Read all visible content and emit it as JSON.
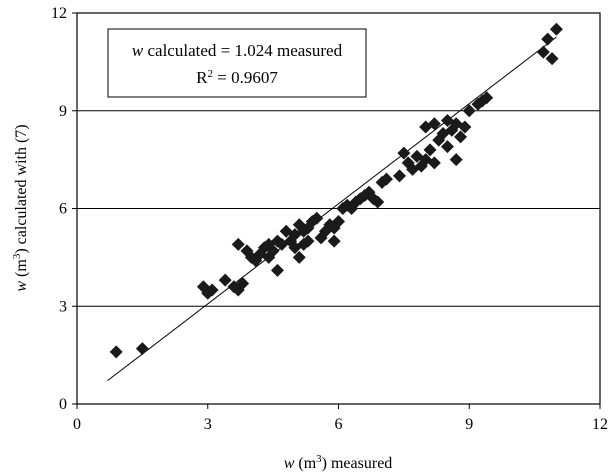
{
  "chart_data": {
    "type": "scatter",
    "xlabel": {
      "var": "w",
      "open": " (m",
      "sup": "3",
      "close": ") measured"
    },
    "ylabel": {
      "var": "w",
      "open": " (m",
      "sup": "3",
      "close": ") calculated with (7)"
    },
    "xlim": [
      0,
      12
    ],
    "ylim": [
      0,
      12
    ],
    "xticks": [
      0,
      3,
      6,
      9,
      12
    ],
    "yticks": [
      0,
      3,
      6,
      9,
      12
    ],
    "grid": {
      "horizontal": true,
      "vertical": false
    },
    "annotation": {
      "line1": {
        "var": "w",
        "text": " calculated = 1.024 measured"
      },
      "line2": {
        "base": "R",
        "sup": "2",
        "text": " = 0.9607"
      }
    },
    "trendline": {
      "slope": 1.024,
      "intercept": 0,
      "x_range": [
        0.7,
        11.0
      ]
    },
    "marker_color": "#1a1a1a",
    "points": [
      [
        0.9,
        1.6
      ],
      [
        1.5,
        1.7
      ],
      [
        2.9,
        3.6
      ],
      [
        3.0,
        3.4
      ],
      [
        3.1,
        3.5
      ],
      [
        3.4,
        3.8
      ],
      [
        3.6,
        3.6
      ],
      [
        3.7,
        3.5
      ],
      [
        3.8,
        3.7
      ],
      [
        3.7,
        4.9
      ],
      [
        3.9,
        4.7
      ],
      [
        4.0,
        4.5
      ],
      [
        4.1,
        4.4
      ],
      [
        4.2,
        4.6
      ],
      [
        4.3,
        4.8
      ],
      [
        4.4,
        4.9
      ],
      [
        4.5,
        4.7
      ],
      [
        4.4,
        4.5
      ],
      [
        4.6,
        5.0
      ],
      [
        4.7,
        4.9
      ],
      [
        4.8,
        5.3
      ],
      [
        4.9,
        5.0
      ],
      [
        5.0,
        5.2
      ],
      [
        4.6,
        4.1
      ],
      [
        5.1,
        5.5
      ],
      [
        5.2,
        5.3
      ],
      [
        5.3,
        5.4
      ],
      [
        5.4,
        5.6
      ],
      [
        5.1,
        4.5
      ],
      [
        5.2,
        4.9
      ],
      [
        5.5,
        5.7
      ],
      [
        5.6,
        5.1
      ],
      [
        5.7,
        5.3
      ],
      [
        5.8,
        5.5
      ],
      [
        5.9,
        5.0
      ],
      [
        5.3,
        5.0
      ],
      [
        5.0,
        4.8
      ],
      [
        6.0,
        5.6
      ],
      [
        6.1,
        6.0
      ],
      [
        5.9,
        5.4
      ],
      [
        6.2,
        6.1
      ],
      [
        6.3,
        6.0
      ],
      [
        6.4,
        6.2
      ],
      [
        6.5,
        6.3
      ],
      [
        6.6,
        6.4
      ],
      [
        6.7,
        6.5
      ],
      [
        6.8,
        6.3
      ],
      [
        6.9,
        6.2
      ],
      [
        7.0,
        6.8
      ],
      [
        7.1,
        6.9
      ],
      [
        7.4,
        7.0
      ],
      [
        7.5,
        7.7
      ],
      [
        7.6,
        7.4
      ],
      [
        7.7,
        7.2
      ],
      [
        7.8,
        7.6
      ],
      [
        7.9,
        7.3
      ],
      [
        8.0,
        7.5
      ],
      [
        8.1,
        7.8
      ],
      [
        8.2,
        7.4
      ],
      [
        8.0,
        8.5
      ],
      [
        8.2,
        8.6
      ],
      [
        8.3,
        8.1
      ],
      [
        8.4,
        8.3
      ],
      [
        8.5,
        7.9
      ],
      [
        8.6,
        8.4
      ],
      [
        8.7,
        8.6
      ],
      [
        8.8,
        8.2
      ],
      [
        8.9,
        8.5
      ],
      [
        8.7,
        7.5
      ],
      [
        8.5,
        8.7
      ],
      [
        9.0,
        9.0
      ],
      [
        9.2,
        9.2
      ],
      [
        9.3,
        9.3
      ],
      [
        9.4,
        9.4
      ],
      [
        10.7,
        10.8
      ],
      [
        10.8,
        11.2
      ],
      [
        10.9,
        10.6
      ],
      [
        11.0,
        11.5
      ]
    ]
  }
}
